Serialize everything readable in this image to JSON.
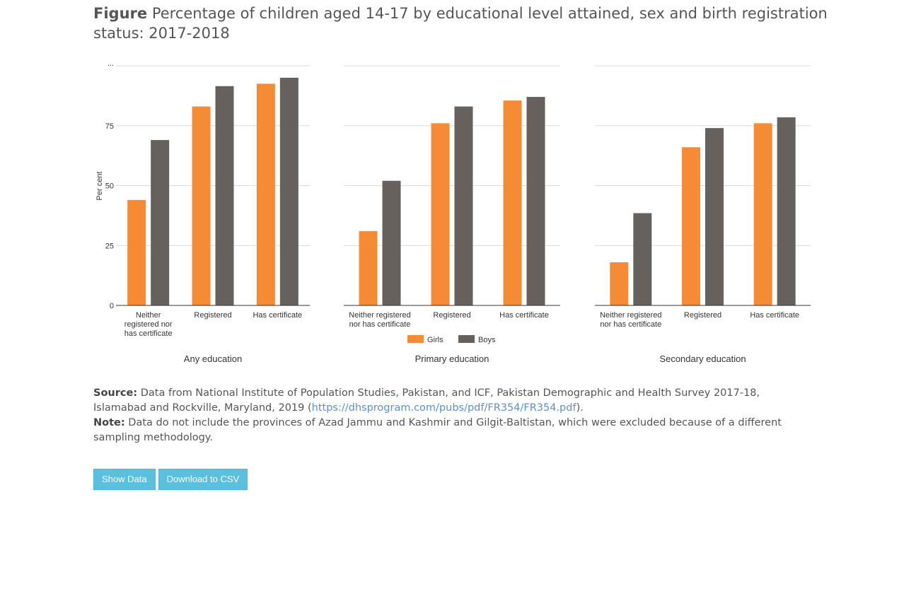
{
  "figure": {
    "lead": "Figure",
    "title": "Percentage of children aged 14-17 by educational level attained, sex and birth registration status: 2017-2018"
  },
  "legend": [
    {
      "label": "Girls",
      "color": "#f58b34"
    },
    {
      "label": "Boys",
      "color": "#67615d"
    }
  ],
  "chart_data": {
    "type": "bar",
    "ylabel": "Per cent",
    "ylim": [
      0,
      100
    ],
    "yticks": [
      "0",
      "25",
      "50",
      "75",
      "..."
    ],
    "grid": true,
    "legend_position": "bottom-center",
    "categories": [
      "Neither registered nor has certificate",
      "Registered",
      "Has certificate"
    ],
    "panels": [
      {
        "name": "Any education",
        "category_labels": [
          [
            "Neither",
            "registered nor",
            "has certificate"
          ],
          [
            "Registered"
          ],
          [
            "Has certificate"
          ]
        ],
        "series": [
          {
            "name": "Girls",
            "values": [
              44,
              83,
              92.5
            ]
          },
          {
            "name": "Boys",
            "values": [
              69,
              91.5,
              95
            ]
          }
        ]
      },
      {
        "name": "Primary education",
        "category_labels": [
          [
            "Neither registered",
            "nor has certificate"
          ],
          [
            "Registered"
          ],
          [
            "Has certificate"
          ]
        ],
        "series": [
          {
            "name": "Girls",
            "values": [
              31,
              76,
              85.5
            ]
          },
          {
            "name": "Boys",
            "values": [
              52,
              83,
              87
            ]
          }
        ]
      },
      {
        "name": "Secondary education",
        "category_labels": [
          [
            "Neither registered",
            "nor has certificate"
          ],
          [
            "Registered"
          ],
          [
            "Has certificate"
          ]
        ],
        "series": [
          {
            "name": "Girls",
            "values": [
              18,
              66,
              76
            ]
          },
          {
            "name": "Boys",
            "values": [
              38.5,
              74,
              78.5
            ]
          }
        ]
      }
    ]
  },
  "notes": {
    "source_label": "Source:",
    "source_text": "Data from National Institute of Population Studies, Pakistan, and ICF, Pakistan Demographic and Health Survey 2017-18, Islamabad and Rockville, Maryland, 2019 (",
    "source_link": "https://dhsprogram.com/pubs/pdf/FR354/FR354.pdf",
    "source_end": ").",
    "note_label": "Note:",
    "note_text": "Data do not include the provinces of Azad Jammu and Kashmir and Gilgit-Baltistan, which were excluded because of a different sampling methodology."
  },
  "buttons": {
    "show_data": "Show Data",
    "download_csv": "Download to CSV"
  }
}
